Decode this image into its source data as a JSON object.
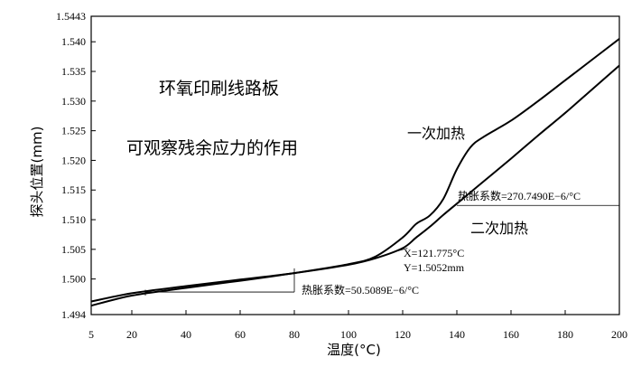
{
  "chart_data": {
    "type": "line",
    "title": "",
    "xlabel": "温度(°C)",
    "ylabel": "探头位置(mm)",
    "xlim": [
      5,
      200
    ],
    "ylim": [
      1.494,
      1.5443
    ],
    "x_ticks": [
      5,
      20,
      40,
      60,
      80,
      100,
      120,
      140,
      160,
      180,
      200
    ],
    "y_ticks": [
      1.494,
      1.5,
      1.505,
      1.51,
      1.515,
      1.52,
      1.525,
      1.53,
      1.535,
      1.54,
      1.5443
    ],
    "x_tick_labels": [
      "5",
      "20",
      "40",
      "60",
      "80",
      "100",
      "120",
      "140",
      "160",
      "180",
      "200"
    ],
    "y_tick_labels": [
      "1.494",
      "1.500",
      "1.505",
      "1.510",
      "1.515",
      "1.520",
      "1.525",
      "1.530",
      "1.535",
      "1.540",
      "1.5443"
    ],
    "grid": false,
    "series": [
      {
        "name": "一次加热",
        "x": [
          5,
          20,
          40,
          60,
          80,
          100,
          110,
          120,
          125,
          130,
          135,
          140,
          145,
          150,
          160,
          170,
          180,
          190,
          200
        ],
        "y": [
          1.4955,
          1.4972,
          1.4985,
          1.4997,
          1.501,
          1.5025,
          1.5038,
          1.507,
          1.5093,
          1.5107,
          1.5135,
          1.5185,
          1.5222,
          1.524,
          1.5267,
          1.53,
          1.5335,
          1.537,
          1.5405
        ]
      },
      {
        "name": "二次加热",
        "x": [
          5,
          20,
          40,
          60,
          80,
          100,
          110,
          120,
          125,
          130,
          135,
          140,
          150,
          160,
          170,
          180,
          190,
          200
        ],
        "y": [
          1.4962,
          1.4976,
          1.4988,
          1.4999,
          1.501,
          1.5024,
          1.5035,
          1.5052,
          1.507,
          1.5088,
          1.5108,
          1.5127,
          1.5165,
          1.5203,
          1.5242,
          1.528,
          1.532,
          1.536
        ]
      }
    ],
    "annotations": {
      "main_label_1": "环氧印刷线路板",
      "main_label_2": "可观察残余应力的作用",
      "series1_label": "一次加热",
      "series2_label": "二次加热",
      "point_x": "X=121.775°C",
      "point_y": "Y=1.5052mm",
      "cte_low": "热胀系数=50.5089E−6/°C",
      "cte_high": "热胀系数=270.7490E−6/°C"
    }
  }
}
